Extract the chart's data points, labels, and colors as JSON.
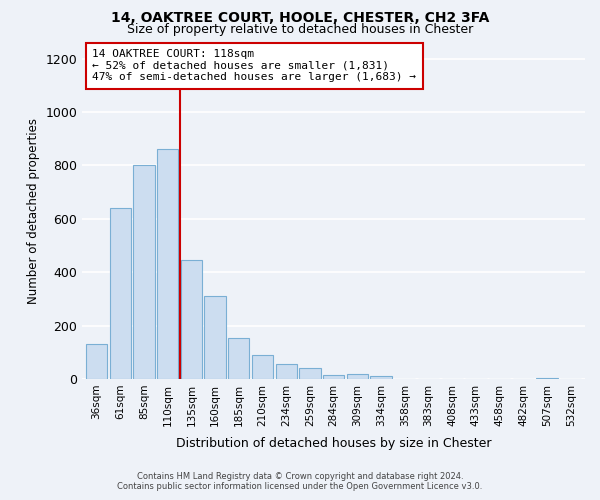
{
  "title": "14, OAKTREE COURT, HOOLE, CHESTER, CH2 3FA",
  "subtitle": "Size of property relative to detached houses in Chester",
  "xlabel": "Distribution of detached houses by size in Chester",
  "ylabel": "Number of detached properties",
  "bar_labels": [
    "36sqm",
    "61sqm",
    "85sqm",
    "110sqm",
    "135sqm",
    "160sqm",
    "185sqm",
    "210sqm",
    "234sqm",
    "259sqm",
    "284sqm",
    "309sqm",
    "334sqm",
    "358sqm",
    "383sqm",
    "408sqm",
    "433sqm",
    "458sqm",
    "482sqm",
    "507sqm",
    "532sqm"
  ],
  "bar_values": [
    130,
    640,
    800,
    860,
    445,
    310,
    155,
    90,
    55,
    40,
    15,
    20,
    10,
    0,
    0,
    0,
    0,
    0,
    0,
    5,
    0
  ],
  "bar_color": "#ccddf0",
  "bar_edge_color": "#7aafd4",
  "ylim": [
    0,
    1260
  ],
  "yticks": [
    0,
    200,
    400,
    600,
    800,
    1000,
    1200
  ],
  "property_line_color": "#cc0000",
  "annotation_title": "14 OAKTREE COURT: 118sqm",
  "annotation_line1": "← 52% of detached houses are smaller (1,831)",
  "annotation_line2": "47% of semi-detached houses are larger (1,683) →",
  "annotation_box_color": "#ffffff",
  "annotation_box_edgecolor": "#cc0000",
  "footer_line1": "Contains HM Land Registry data © Crown copyright and database right 2024.",
  "footer_line2": "Contains public sector information licensed under the Open Government Licence v3.0.",
  "background_color": "#eef2f8",
  "grid_color": "#ffffff"
}
